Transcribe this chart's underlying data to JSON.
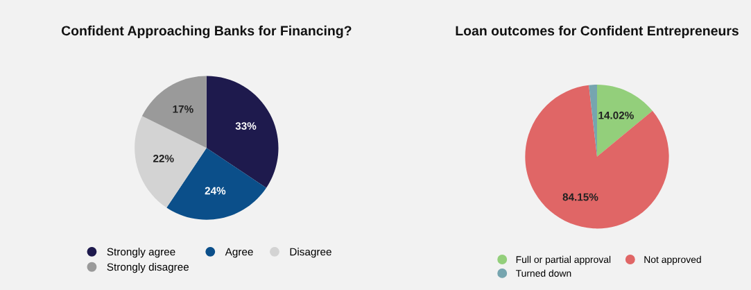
{
  "chart_data": [
    {
      "type": "pie",
      "title": "Confident Approaching Banks for Financing?",
      "categories": [
        "Strongly agree",
        "Agree",
        "Disagree",
        "Strongly disagree"
      ],
      "values": [
        33,
        24,
        22,
        17
      ],
      "colors": [
        "#1e1a4d",
        "#0b4f8a",
        "#d3d3d3",
        "#9a9a9a"
      ],
      "value_labels": [
        "33%",
        "24%",
        "22%",
        "17%"
      ],
      "legend": "bottom"
    },
    {
      "type": "pie",
      "title": "Loan outcomes for Confident Entrepreneurs",
      "categories": [
        "Full or partial approval",
        "Not approved",
        "Turned down"
      ],
      "values": [
        14.02,
        84.15,
        1.83
      ],
      "colors": [
        "#93cf7b",
        "#e06666",
        "#76a5af"
      ],
      "value_labels": [
        "14.02%",
        "84.15%",
        null
      ],
      "legend": "bottom"
    }
  ]
}
